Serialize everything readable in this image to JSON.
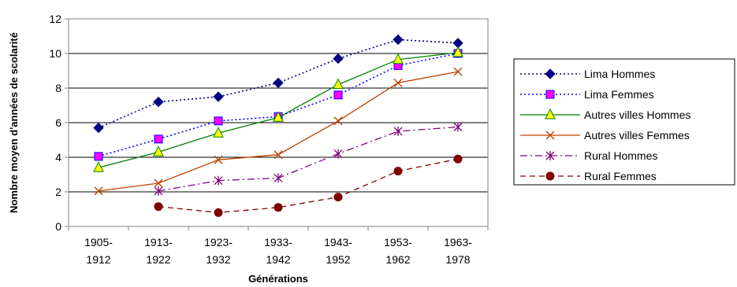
{
  "chart_data": {
    "type": "line",
    "xlabel": "Générations",
    "ylabel": "Nombre moyen d'années de scolarité",
    "ylim": [
      0,
      12
    ],
    "yticks": [
      0,
      2,
      4,
      6,
      8,
      10,
      12
    ],
    "grid": "horizontal",
    "legend_position": "right",
    "categories": [
      [
        "1905-",
        "1912"
      ],
      [
        "1913-",
        "1922"
      ],
      [
        "1923-",
        "1932"
      ],
      [
        "1933-",
        "1942"
      ],
      [
        "1943-",
        "1952"
      ],
      [
        "1953-",
        "1962"
      ],
      [
        "1963-",
        "1978"
      ]
    ],
    "series": [
      {
        "name": "Lima Hommes",
        "values": [
          5.7,
          7.2,
          7.5,
          8.3,
          9.7,
          10.8,
          10.6
        ],
        "color": "#000080",
        "dash": "dotted",
        "marker": "diamond",
        "marker_fill": "#000080"
      },
      {
        "name": "Lima Femmes",
        "values": [
          4.05,
          5.05,
          6.1,
          6.35,
          7.6,
          9.3,
          10.0
        ],
        "color": "#0000ff",
        "dash": "dotted",
        "marker": "square",
        "marker_fill": "#ff00ff"
      },
      {
        "name": "Autres villes Hommes",
        "values": [
          3.4,
          4.3,
          5.4,
          6.3,
          8.2,
          9.65,
          10.05
        ],
        "color": "#008000",
        "dash": "solid",
        "marker": "triangle",
        "marker_fill": "#ffff00"
      },
      {
        "name": "Autres villes Femmes",
        "values": [
          2.05,
          2.5,
          3.85,
          4.15,
          6.1,
          8.3,
          8.95
        ],
        "color": "#c04000",
        "dash": "solid",
        "marker": "x",
        "marker_fill": "#c04000"
      },
      {
        "name": "Rural Hommes",
        "values": [
          null,
          2.05,
          2.65,
          2.8,
          4.2,
          5.5,
          5.75
        ],
        "color": "#800080",
        "dash": "dashdot",
        "marker": "star",
        "marker_fill": "#800080"
      },
      {
        "name": "Rural Femmes",
        "values": [
          null,
          1.15,
          0.8,
          1.1,
          1.7,
          3.2,
          3.9
        ],
        "color": "#800000",
        "dash": "dashed",
        "marker": "circle",
        "marker_fill": "#800000"
      }
    ]
  }
}
